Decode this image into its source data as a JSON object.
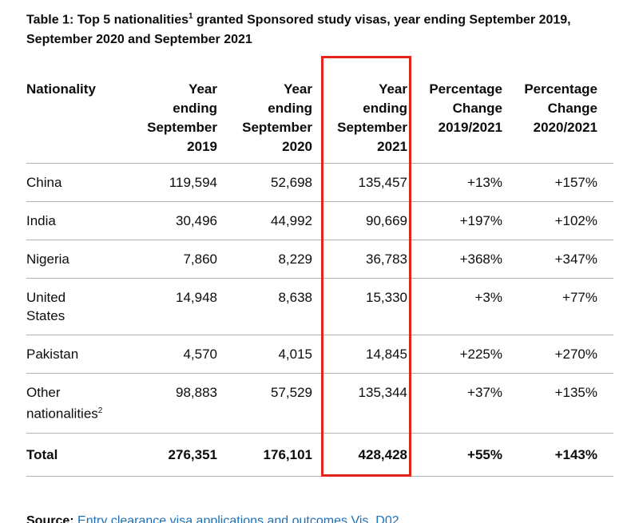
{
  "colors": {
    "text": "#0b0c0c",
    "table_border": "#b1b4b6",
    "link": "#1d70b8",
    "highlight_box": "#e1251b",
    "background": "#ffffff"
  },
  "title": {
    "part1": "Table 1: Top 5 nationalities",
    "sup": "1",
    "part2": " granted Sponsored study visas, year ending September 2019, September 2020 and September 2021"
  },
  "table": {
    "headers": {
      "nationality": "Nationality",
      "col1": "Year\nending\nSeptember\n2019",
      "col2": "Year\nending\nSeptember\n2020",
      "col3": "Year\nending\nSeptember\n2021",
      "col4": "Percentage\nChange\n2019/2021",
      "col5": "Percentage\nChange\n2020/2021"
    },
    "rows": [
      {
        "nationality": "China",
        "v1": "119,594",
        "v2": "52,698",
        "v3": "135,457",
        "v4": "+13%",
        "v5": "+157%"
      },
      {
        "nationality": "India",
        "v1": "30,496",
        "v2": "44,992",
        "v3": "90,669",
        "v4": "+197%",
        "v5": "+102%"
      },
      {
        "nationality": "Nigeria",
        "v1": "7,860",
        "v2": "8,229",
        "v3": "36,783",
        "v4": "+368%",
        "v5": "+347%"
      },
      {
        "nationality": "United States",
        "v1": "14,948",
        "v2": "8,638",
        "v3": "15,330",
        "v4": "+3%",
        "v5": "+77%"
      },
      {
        "nationality": "Pakistan",
        "v1": "4,570",
        "v2": "4,015",
        "v3": "14,845",
        "v4": "+225%",
        "v5": "+270%"
      },
      {
        "nationality": "Other nationalities",
        "sup": "2",
        "v1": "98,883",
        "v2": "57,529",
        "v3": "135,344",
        "v4": "+37%",
        "v5": "+135%"
      }
    ],
    "total": {
      "label": "Total",
      "v1": "276,351",
      "v2": "176,101",
      "v3": "428,428",
      "v4": "+55%",
      "v5": "+143%"
    }
  },
  "annotation": {
    "highlighted_column": "Year ending September 2021",
    "color": "#e1251b"
  },
  "source": {
    "label": "Source:",
    "link_text": "Entry clearance visa applications and outcomes Vis_D02"
  },
  "chart_data": {
    "type": "table",
    "title": "Table 1: Top 5 nationalities granted Sponsored study visas, year ending September 2019, September 2020 and September 2021",
    "columns": [
      "Nationality",
      "Year ending September 2019",
      "Year ending September 2020",
      "Year ending September 2021",
      "Percentage Change 2019/2021",
      "Percentage Change 2020/2021"
    ],
    "rows": [
      [
        "China",
        119594,
        52698,
        135457,
        "+13%",
        "+157%"
      ],
      [
        "India",
        30496,
        44992,
        90669,
        "+197%",
        "+102%"
      ],
      [
        "Nigeria",
        7860,
        8229,
        36783,
        "+368%",
        "+347%"
      ],
      [
        "United States",
        14948,
        8638,
        15330,
        "+3%",
        "+77%"
      ],
      [
        "Pakistan",
        4570,
        4015,
        14845,
        "+225%",
        "+270%"
      ],
      [
        "Other nationalities",
        98883,
        57529,
        135344,
        "+37%",
        "+135%"
      ],
      [
        "Total",
        276351,
        176101,
        428428,
        "+55%",
        "+143%"
      ]
    ],
    "highlighted_column": "Year ending September 2021",
    "footnotes_referenced": [
      "1",
      "2"
    ],
    "source": "Entry clearance visa applications and outcomes Vis_D02"
  }
}
